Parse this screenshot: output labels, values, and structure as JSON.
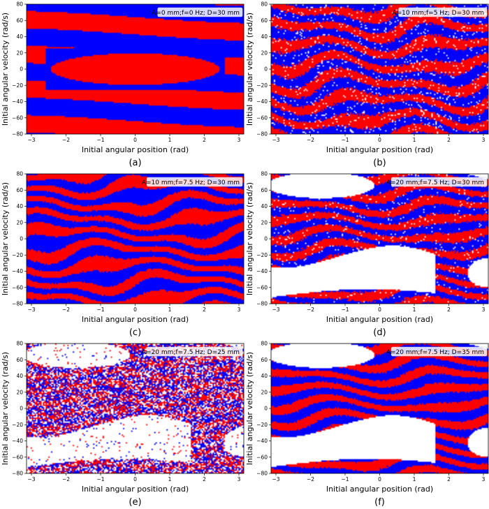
{
  "colors": {
    "basin_a": "#ff0000",
    "basin_b": "#0000ff",
    "escape": "#ffffff"
  },
  "chart_data": [
    {
      "type": "heatmap",
      "panel_label": "(a)",
      "legend": "A=0 mm;f=0 Hz; D=30 mm",
      "xlabel": "Initial angular position (rad)",
      "ylabel": "Initial angular velocity (rad/s)",
      "xlim": [
        -3.14159,
        3.14159
      ],
      "ylim": [
        -80,
        80
      ],
      "xticks": [
        -3,
        -2,
        -1,
        0,
        1,
        2,
        3
      ],
      "yticks": [
        -80,
        -60,
        -40,
        -20,
        0,
        20,
        40,
        60,
        80
      ],
      "params": {
        "A_mm": 0,
        "f_Hz": 0,
        "D_mm": 30
      }
    },
    {
      "type": "heatmap",
      "panel_label": "(b)",
      "legend": "A=10 mm;f=5 Hz; D=30 mm",
      "xlabel": "Initial angular position (rad)",
      "ylabel": "Initial angular velocity (rad/s)",
      "xlim": [
        -3.14159,
        3.14159
      ],
      "ylim": [
        -80,
        80
      ],
      "xticks": [
        -3,
        -2,
        -1,
        0,
        1,
        2,
        3
      ],
      "yticks": [
        -80,
        -60,
        -40,
        -20,
        0,
        20,
        40,
        60,
        80
      ],
      "params": {
        "A_mm": 10,
        "f_Hz": 5,
        "D_mm": 30
      }
    },
    {
      "type": "heatmap",
      "panel_label": "(c)",
      "legend": "A=10 mm;f=7.5 Hz; D=30 mm",
      "xlabel": "Initial angular position (rad)",
      "ylabel": "Initial angular velocity (rad/s)",
      "xlim": [
        -3.14159,
        3.14159
      ],
      "ylim": [
        -80,
        80
      ],
      "xticks": [
        -3,
        -2,
        -1,
        0,
        1,
        2,
        3
      ],
      "yticks": [
        -80,
        -60,
        -40,
        -20,
        0,
        20,
        40,
        60,
        80
      ],
      "params": {
        "A_mm": 10,
        "f_Hz": 7.5,
        "D_mm": 30
      }
    },
    {
      "type": "heatmap",
      "panel_label": "(d)",
      "legend": "A=20 mm;f=7.5 Hz; D=30 mm",
      "xlabel": "Initial angular position (rad)",
      "ylabel": "Initial angular velocity (rad/s)",
      "xlim": [
        -3.14159,
        3.14159
      ],
      "ylim": [
        -80,
        80
      ],
      "xticks": [
        -3,
        -2,
        -1,
        0,
        1,
        2,
        3
      ],
      "yticks": [
        -80,
        -60,
        -40,
        -20,
        0,
        20,
        40,
        60,
        80
      ],
      "params": {
        "A_mm": 20,
        "f_Hz": 7.5,
        "D_mm": 30
      }
    },
    {
      "type": "heatmap",
      "panel_label": "(e)",
      "legend": "A=20 mm;f=7.5 Hz; D=25 mm",
      "xlabel": "Initial angular position (rad)",
      "ylabel": "Initial angular velocity (rad/s)",
      "xlim": [
        -3.14159,
        3.14159
      ],
      "ylim": [
        -80,
        80
      ],
      "xticks": [
        -3,
        -2,
        -1,
        0,
        1,
        2,
        3
      ],
      "yticks": [
        -80,
        -60,
        -40,
        -20,
        0,
        20,
        40,
        60,
        80
      ],
      "params": {
        "A_mm": 20,
        "f_Hz": 7.5,
        "D_mm": 25
      }
    },
    {
      "type": "heatmap",
      "panel_label": "(f)",
      "legend": "A=20 mm;f=7.5 Hz; D=35 mm",
      "xlabel": "Initial angular position (rad)",
      "ylabel": "Initial angular velocity (rad/s)",
      "xlim": [
        -3.14159,
        3.14159
      ],
      "ylim": [
        -80,
        80
      ],
      "xticks": [
        -3,
        -2,
        -1,
        0,
        1,
        2,
        3
      ],
      "yticks": [
        -80,
        -60,
        -40,
        -20,
        0,
        20,
        40,
        60,
        80
      ],
      "params": {
        "A_mm": 20,
        "f_Hz": 7.5,
        "D_mm": 35
      }
    }
  ]
}
